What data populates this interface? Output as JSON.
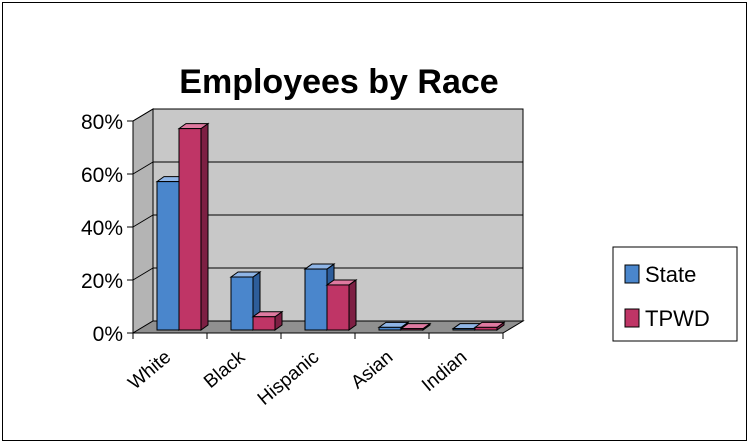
{
  "chart_data": {
    "type": "bar",
    "title": "Employees by Race",
    "categories": [
      "White",
      "Black",
      "Hispanic",
      "Asian",
      "Indian"
    ],
    "series": [
      {
        "name": "State",
        "values": [
          56,
          20,
          23,
          1,
          0.5
        ]
      },
      {
        "name": "TPWD",
        "values": [
          76,
          5,
          17,
          0.5,
          1
        ]
      }
    ],
    "ylim": [
      0,
      80
    ],
    "yticks": [
      "0%",
      "20%",
      "40%",
      "60%",
      "80%"
    ],
    "ytick_values": [
      0,
      20,
      40,
      60,
      80
    ],
    "grid": true,
    "legend_position": "right",
    "colors": {
      "State": {
        "front": "#4a86cc",
        "top": "#8fb5e6",
        "side": "#2d5d9a"
      },
      "TPWD": {
        "front": "#bf3566",
        "top": "#df7aa0",
        "side": "#7d1f43"
      },
      "wall": "#c8c8c8",
      "floor": "#909090"
    }
  }
}
